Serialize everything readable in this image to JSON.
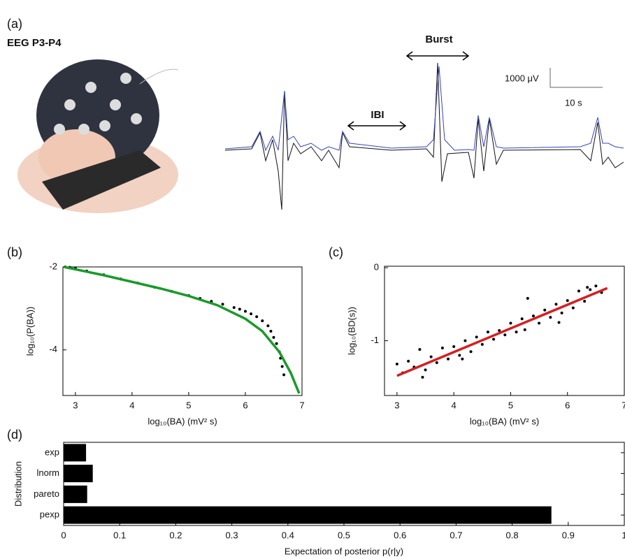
{
  "panel_a": {
    "label": "(a)",
    "title": "EEG P3-P4",
    "burst": "Burst",
    "ibi": "IBI",
    "scale_amplitude": "1000 μV",
    "scale_time": "10 s"
  },
  "chart_data": [
    {
      "type": "line",
      "panel": "(b)",
      "xlabel": "log₁₀(BA) (mV² s)",
      "ylabel": "log₁₀(P(BA))",
      "xlim": [
        2.78,
        7.0
      ],
      "ylim": [
        -5.1,
        -2.0
      ],
      "xticks": [
        3,
        4,
        5,
        6,
        7
      ],
      "yticks": [
        -4,
        -2
      ],
      "series": [
        {
          "mode": "markers",
          "color": "#000000",
          "x": [
            2.82,
            2.9,
            3.0,
            3.2,
            3.5,
            3.8,
            4.1,
            4.4,
            4.7,
            5.0,
            5.2,
            5.4,
            5.6,
            5.8,
            5.9,
            6.0,
            6.1,
            6.2,
            6.3,
            6.4,
            6.45,
            6.5,
            6.55,
            6.6,
            6.62,
            6.65,
            6.68
          ],
          "values": [
            -2.0,
            -2.01,
            -2.03,
            -2.1,
            -2.19,
            -2.29,
            -2.39,
            -2.49,
            -2.59,
            -2.69,
            -2.76,
            -2.83,
            -2.9,
            -2.98,
            -3.02,
            -3.07,
            -3.13,
            -3.2,
            -3.3,
            -3.42,
            -3.55,
            -3.7,
            -3.85,
            -4.05,
            -4.2,
            -4.4,
            -4.6
          ]
        },
        {
          "mode": "line",
          "color": "#1a9a2a",
          "x": [
            2.8,
            3.5,
            4.0,
            4.5,
            5.0,
            5.5,
            6.0,
            6.3,
            6.6,
            6.8,
            6.95
          ],
          "values": [
            -2.0,
            -2.2,
            -2.36,
            -2.52,
            -2.7,
            -2.92,
            -3.25,
            -3.55,
            -4.05,
            -4.55,
            -5.05
          ]
        }
      ]
    },
    {
      "type": "scatter",
      "panel": "(c)",
      "xlabel": "log₁₀(BA) (mV² s)",
      "ylabel": "log₁₀(BD(s))",
      "xlim": [
        2.78,
        7.0
      ],
      "ylim": [
        -1.75,
        0.02
      ],
      "xticks": [
        3,
        4,
        5,
        6,
        7
      ],
      "yticks": [
        -1,
        0
      ],
      "series": [
        {
          "mode": "markers",
          "color": "#000000",
          "x": [
            3.0,
            3.1,
            3.2,
            3.3,
            3.4,
            3.5,
            3.6,
            3.7,
            3.8,
            3.9,
            4.0,
            4.1,
            4.2,
            4.3,
            4.4,
            4.5,
            4.6,
            4.7,
            4.8,
            4.9,
            5.0,
            5.1,
            5.2,
            5.3,
            5.4,
            5.5,
            5.6,
            5.7,
            5.8,
            5.9,
            6.0,
            6.1,
            6.2,
            6.3,
            6.4,
            6.5,
            6.6,
            3.45,
            4.15,
            5.25,
            5.85,
            6.35
          ],
          "values": [
            -1.32,
            -1.44,
            -1.28,
            -1.36,
            -1.12,
            -1.4,
            -1.22,
            -1.3,
            -1.1,
            -1.25,
            -1.08,
            -1.2,
            -1.0,
            -1.15,
            -0.95,
            -1.05,
            -0.88,
            -0.98,
            -0.86,
            -0.92,
            -0.76,
            -0.88,
            -0.7,
            -0.42,
            -0.66,
            -0.76,
            -0.58,
            -0.68,
            -0.5,
            -0.62,
            -0.45,
            -0.55,
            -0.32,
            -0.46,
            -0.3,
            -0.25,
            -0.34,
            -1.5,
            -1.25,
            -0.85,
            -0.75,
            -0.27
          ]
        },
        {
          "mode": "line",
          "color": "#d42020",
          "x": [
            3.0,
            6.7
          ],
          "values": [
            -1.48,
            -0.28
          ]
        }
      ]
    },
    {
      "type": "bar",
      "panel": "(d)",
      "orientation": "horizontal",
      "xlabel": "Expectation of posterior p(r|y)",
      "ylabel": "Distribution",
      "categories": [
        "exp",
        "lnorm",
        "pareto",
        "pexp"
      ],
      "values": [
        0.04,
        0.052,
        0.042,
        0.87
      ],
      "color": "#000000",
      "xlim": [
        0,
        1
      ],
      "xticks": [
        0,
        0.1,
        0.2,
        0.3,
        0.4,
        0.5,
        0.6,
        0.7,
        0.8,
        0.9,
        1
      ]
    }
  ]
}
